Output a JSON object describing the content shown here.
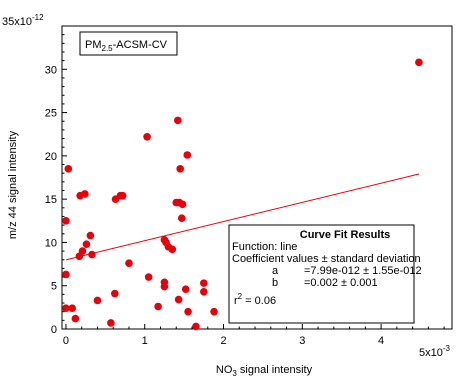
{
  "chart_data": {
    "type": "scatter",
    "title": "",
    "xlabel_main": "NO",
    "xlabel_sub": "3",
    "xlabel_rest": " signal intensity",
    "ylabel": "m/z 44 signal intensity",
    "x_unit_label": "5x10",
    "x_unit_exp": "-3",
    "y_unit_label": "35x10",
    "y_unit_exp": "-12",
    "x_scale": 0.001,
    "y_scale": 1e-12,
    "xlim": [
      -0.05,
      4.9
    ],
    "ylim": [
      0,
      35
    ],
    "x_ticks": [
      0,
      1,
      2,
      3,
      4
    ],
    "y_ticks": [
      0,
      5,
      10,
      15,
      20,
      25,
      30
    ],
    "marker_color": "#e8000b",
    "line_color": "#e8000b",
    "legend": {
      "main": "PM",
      "sub": "2.5",
      "rest": "-ACSM-CV"
    },
    "fit_line": {
      "x": [
        0,
        4.48
      ],
      "y": [
        7.99,
        17.9
      ]
    },
    "curve_fit": {
      "title": "Curve Fit Results",
      "function": "Function: line",
      "coef_header": "Coefficient values ± standard deviation",
      "a_name": "a",
      "a_value": "=7.99e-012 ± 1.55e-012",
      "b_name": "b",
      "b_value": "=0.002 ± 0.001",
      "r2_label": "r",
      "r2_exp": "2",
      "r2_value": " = 0.06"
    },
    "points": [
      [
        0.0,
        2.4
      ],
      [
        0.0,
        6.3
      ],
      [
        0.0,
        12.5
      ],
      [
        0.03,
        18.5
      ],
      [
        0.08,
        2.4
      ],
      [
        0.12,
        1.2
      ],
      [
        0.17,
        8.4
      ],
      [
        0.18,
        15.4
      ],
      [
        0.21,
        9.0
      ],
      [
        0.24,
        15.6
      ],
      [
        0.26,
        9.8
      ],
      [
        0.31,
        10.8
      ],
      [
        0.33,
        8.6
      ],
      [
        0.4,
        3.3
      ],
      [
        0.57,
        0.7
      ],
      [
        0.62,
        4.1
      ],
      [
        0.63,
        15.0
      ],
      [
        0.69,
        15.4
      ],
      [
        0.72,
        15.4
      ],
      [
        0.8,
        7.6
      ],
      [
        1.03,
        22.2
      ],
      [
        1.05,
        6.0
      ],
      [
        1.17,
        2.6
      ],
      [
        1.25,
        4.9
      ],
      [
        1.25,
        5.4
      ],
      [
        1.25,
        10.3
      ],
      [
        1.27,
        10.0
      ],
      [
        1.3,
        9.5
      ],
      [
        1.35,
        9.2
      ],
      [
        1.4,
        14.6
      ],
      [
        1.42,
        24.1
      ],
      [
        1.43,
        3.4
      ],
      [
        1.44,
        14.6
      ],
      [
        1.45,
        18.5
      ],
      [
        1.47,
        12.8
      ],
      [
        1.48,
        14.4
      ],
      [
        1.52,
        4.6
      ],
      [
        1.54,
        20.1
      ],
      [
        1.55,
        2.0
      ],
      [
        1.65,
        0.3
      ],
      [
        1.75,
        5.3
      ],
      [
        1.75,
        4.3
      ],
      [
        1.88,
        2.0
      ],
      [
        4.48,
        30.8
      ]
    ]
  }
}
